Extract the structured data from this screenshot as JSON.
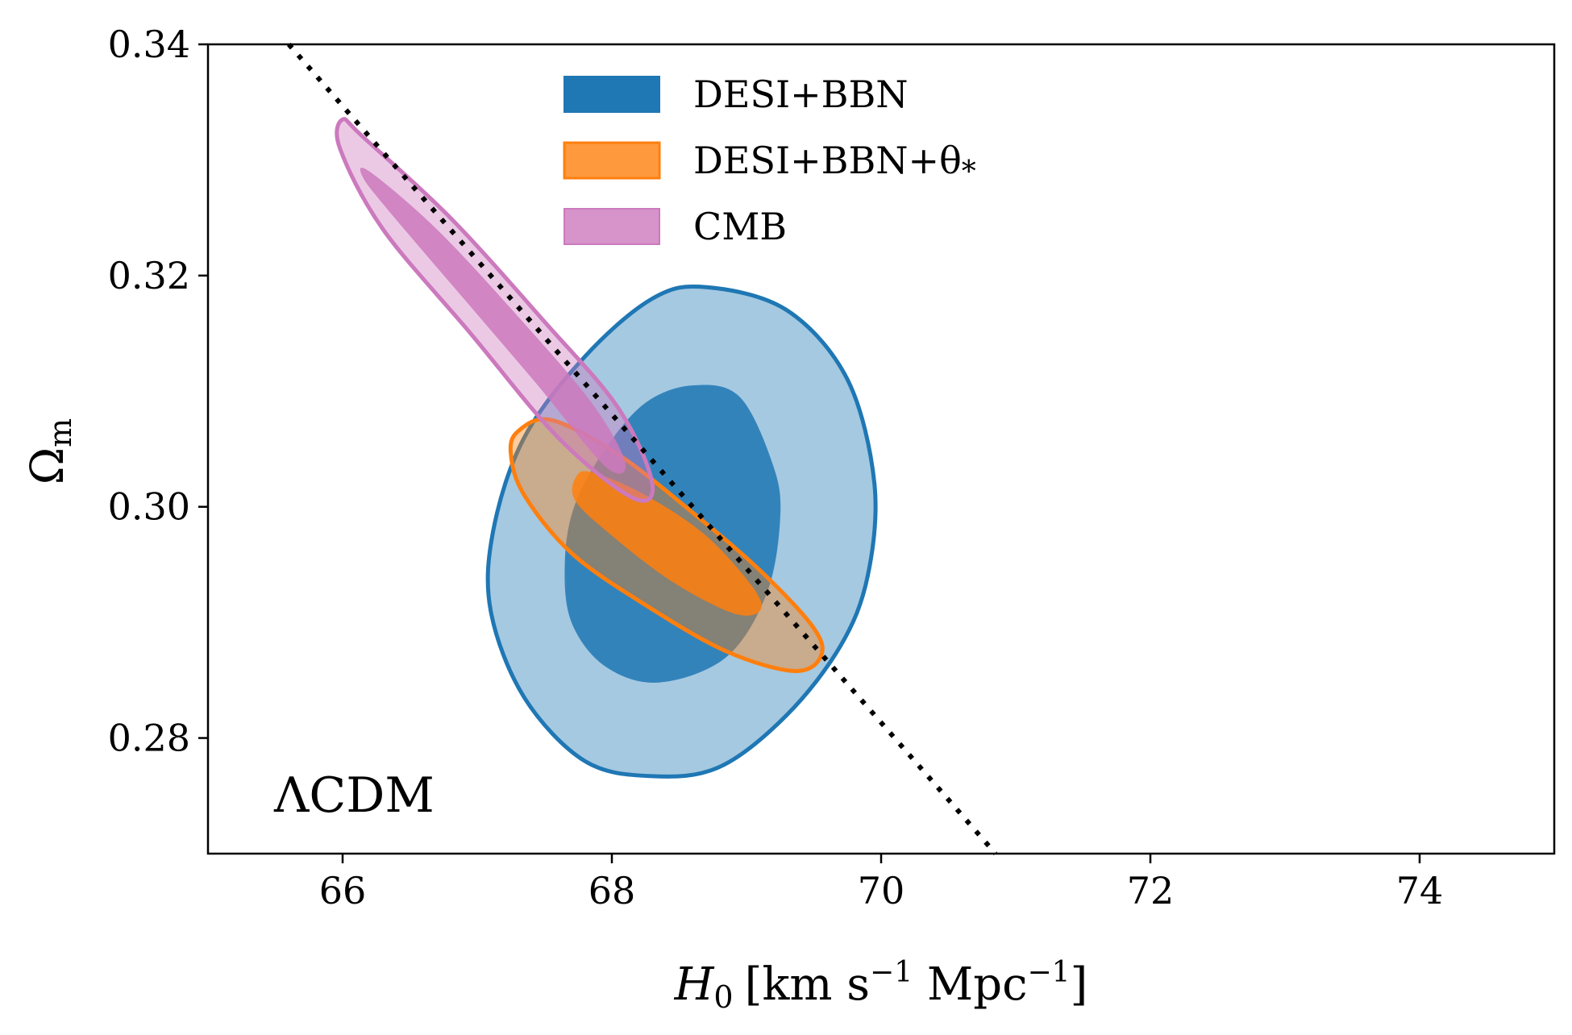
{
  "chart_data": {
    "type": "contour",
    "xlim": [
      65,
      75
    ],
    "ylim": [
      0.27,
      0.34
    ],
    "x_ticks": [
      {
        "value": 66,
        "label": "66"
      },
      {
        "value": 68,
        "label": "68"
      },
      {
        "value": 70,
        "label": "70"
      },
      {
        "value": 72,
        "label": "72"
      },
      {
        "value": 74,
        "label": "74"
      }
    ],
    "y_ticks": [
      {
        "value": 0.28,
        "label": "0.28"
      },
      {
        "value": 0.3,
        "label": "0.30"
      },
      {
        "value": 0.32,
        "label": "0.32"
      },
      {
        "value": 0.34,
        "label": "0.34"
      }
    ],
    "xlabel": {
      "symbol": "H",
      "sub": "0",
      "units_prefix": "[km s",
      "sup1": "−1",
      "units_mid": " Mpc",
      "sup2": "−1",
      "units_suffix": "]"
    },
    "ylabel": {
      "symbol": "Ω",
      "sub": "m"
    },
    "annotation": "ΛCDM",
    "legend_placement": "top-center",
    "grid": false,
    "colors": {
      "desi_bbn": "#1f77b4",
      "desi_bbn_theta": "#ff7f0e",
      "cmb": "#cc79bd"
    },
    "series": [
      {
        "key": "desi_bbn",
        "name": "DESI+BBN",
        "outer_95": [
          [
            68.7,
            0.319
          ],
          [
            69.3,
            0.317
          ],
          [
            69.75,
            0.311
          ],
          [
            69.95,
            0.302
          ],
          [
            69.9,
            0.294
          ],
          [
            69.7,
            0.288
          ],
          [
            69.3,
            0.282
          ],
          [
            68.8,
            0.2775
          ],
          [
            68.3,
            0.2767
          ],
          [
            67.8,
            0.278
          ],
          [
            67.35,
            0.2835
          ],
          [
            67.1,
            0.291
          ],
          [
            67.12,
            0.298
          ],
          [
            67.35,
            0.306
          ],
          [
            67.8,
            0.313
          ],
          [
            68.3,
            0.318
          ]
        ],
        "inner_68": [
          [
            68.6,
            0.3105
          ],
          [
            68.95,
            0.3095
          ],
          [
            69.2,
            0.3035
          ],
          [
            69.25,
            0.299
          ],
          [
            69.15,
            0.2925
          ],
          [
            68.85,
            0.287
          ],
          [
            68.35,
            0.2848
          ],
          [
            67.95,
            0.2862
          ],
          [
            67.7,
            0.29
          ],
          [
            67.65,
            0.295
          ],
          [
            67.72,
            0.3
          ],
          [
            67.95,
            0.305
          ],
          [
            68.25,
            0.309
          ]
        ]
      },
      {
        "key": "desi_bbn_theta",
        "name": "DESI+BBN+θ",
        "name_sub": "*",
        "outer_95": [
          [
            67.3,
            0.3065
          ],
          [
            67.55,
            0.3075
          ],
          [
            68.05,
            0.3045
          ],
          [
            68.6,
            0.2995
          ],
          [
            69.1,
            0.2945
          ],
          [
            69.5,
            0.2895
          ],
          [
            69.55,
            0.287
          ],
          [
            69.35,
            0.2858
          ],
          [
            68.85,
            0.2875
          ],
          [
            68.25,
            0.2915
          ],
          [
            67.7,
            0.296
          ],
          [
            67.35,
            0.301
          ],
          [
            67.25,
            0.3045
          ]
        ],
        "inner_68": [
          [
            67.85,
            0.303
          ],
          [
            68.25,
            0.301
          ],
          [
            68.7,
            0.2975
          ],
          [
            69.05,
            0.293
          ],
          [
            69.1,
            0.291
          ],
          [
            68.9,
            0.2908
          ],
          [
            68.45,
            0.2935
          ],
          [
            68.0,
            0.2975
          ],
          [
            67.73,
            0.3005
          ],
          [
            67.73,
            0.3025
          ]
        ]
      },
      {
        "key": "cmb",
        "name": "CMB",
        "outer_95": [
          [
            66.0,
            0.3335
          ],
          [
            66.15,
            0.332
          ],
          [
            66.8,
            0.325
          ],
          [
            67.5,
            0.316
          ],
          [
            68.05,
            0.3085
          ],
          [
            68.3,
            0.302
          ],
          [
            68.15,
            0.3008
          ],
          [
            67.6,
            0.306
          ],
          [
            66.95,
            0.315
          ],
          [
            66.3,
            0.324
          ],
          [
            65.98,
            0.331
          ]
        ],
        "inner_68": [
          [
            66.2,
            0.329
          ],
          [
            66.7,
            0.324
          ],
          [
            67.3,
            0.3165
          ],
          [
            67.85,
            0.309
          ],
          [
            68.1,
            0.3038
          ],
          [
            67.95,
            0.3035
          ],
          [
            67.45,
            0.3105
          ],
          [
            66.9,
            0.318
          ],
          [
            66.35,
            0.3255
          ],
          [
            66.15,
            0.3285
          ]
        ]
      }
    ],
    "reference_line": {
      "style": "dotted",
      "color": "#000000",
      "points": [
        [
          65.6,
          0.34
        ],
        [
          70.85,
          0.27
        ]
      ]
    }
  }
}
